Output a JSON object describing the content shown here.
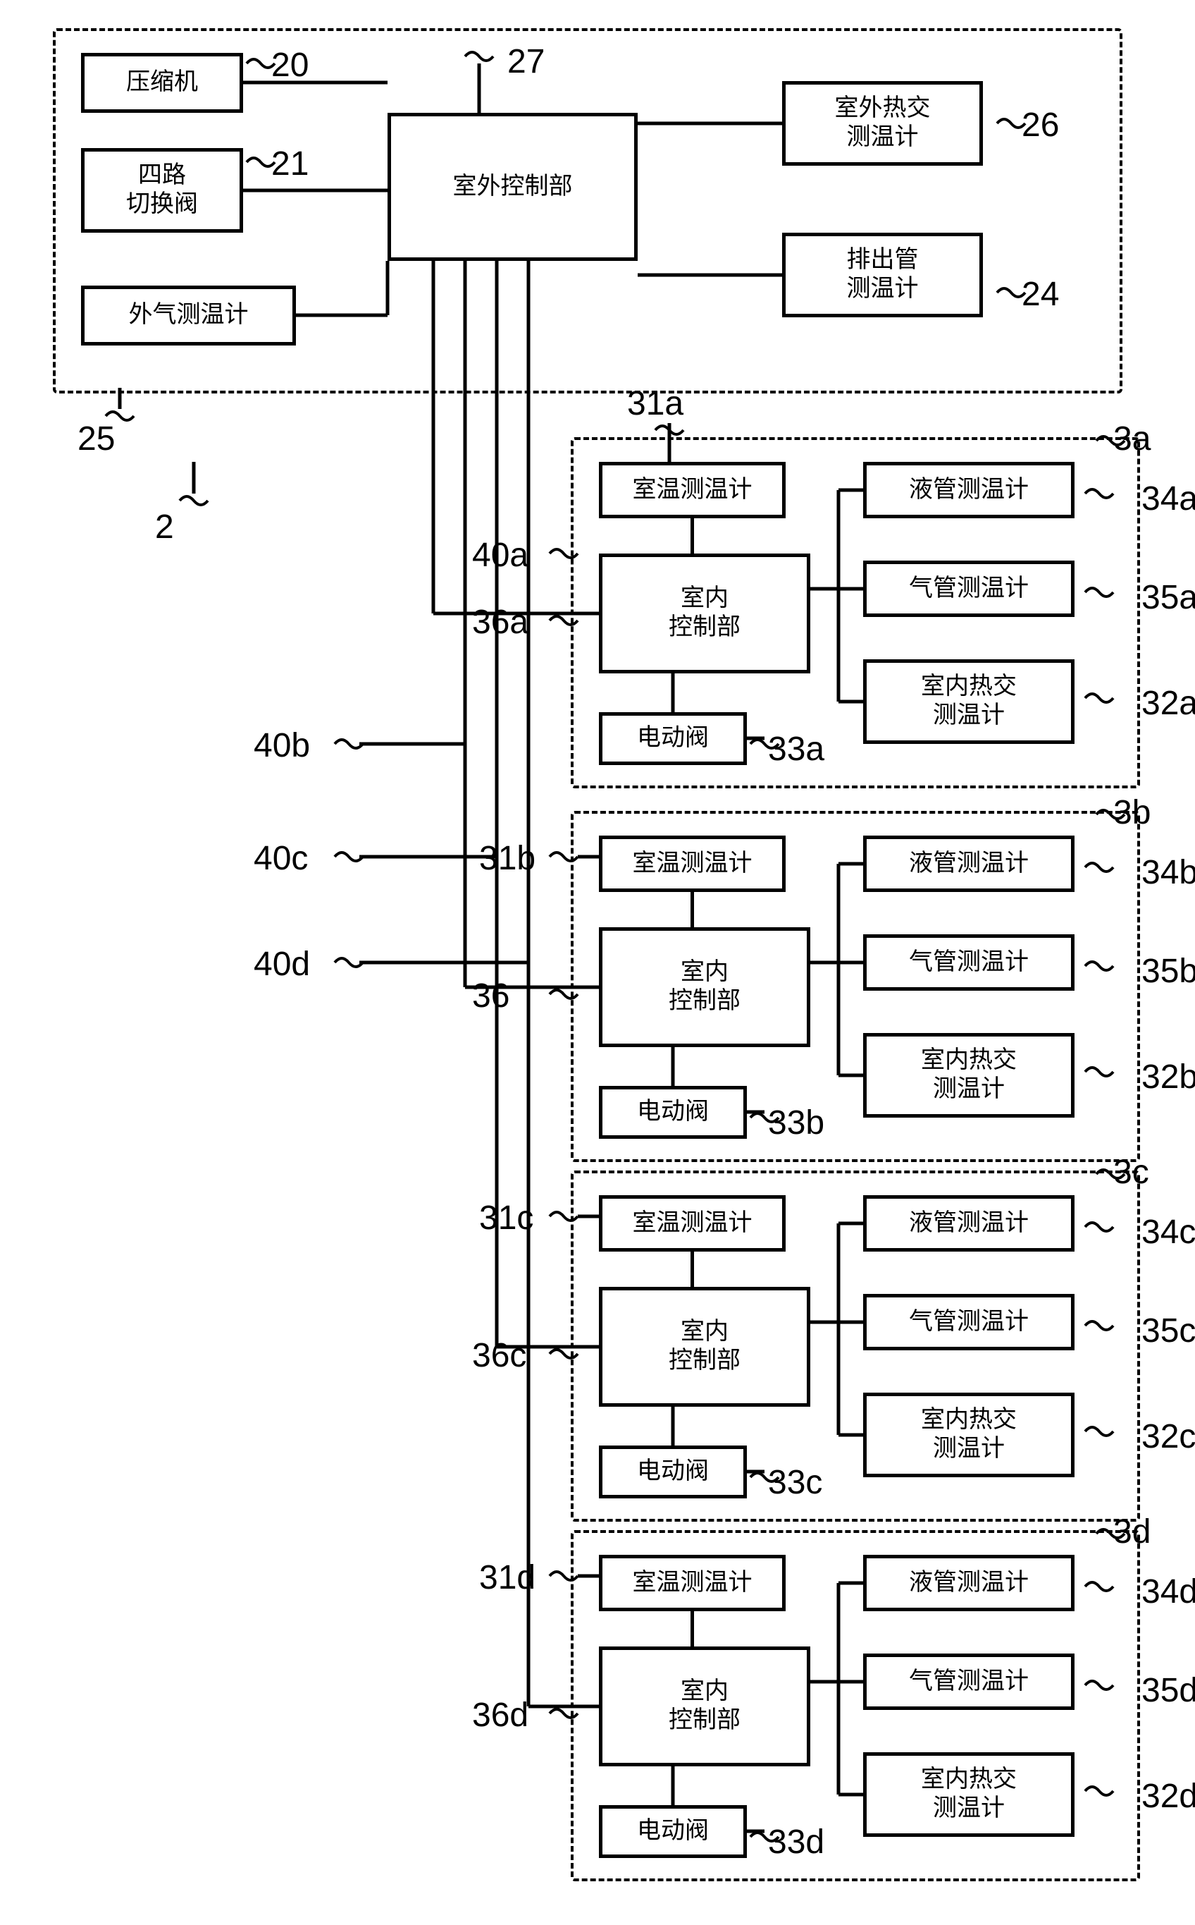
{
  "outdoor": {
    "compressor": "压缩机",
    "four_way": "四路\n切换阀",
    "outdoor_ctrl": "室外控制部",
    "outdoor_hx": "室外热交\n测温计",
    "discharge": "排出管\n测温计",
    "outside_air": "外气测温计",
    "labels": {
      "l20": "20",
      "l21": "21",
      "l27": "27",
      "l26": "26",
      "l24": "24",
      "l25": "25",
      "l2": "2"
    }
  },
  "indoor": {
    "room_temp": "室温测温计",
    "indoor_ctrl": "室内\n控制部",
    "e_valve": "电动阀",
    "liquid": "液管测温计",
    "gas": "气管测温计",
    "indoor_hx": "室内热交\n测温计"
  },
  "units": [
    {
      "suffix": "a",
      "has_36_suffix": true,
      "l40": "40a",
      "l31": "31a",
      "l36": "36a",
      "l33": "33a",
      "l34": "34a",
      "l35": "35a",
      "l32": "32a",
      "l3": "3a"
    },
    {
      "suffix": "b",
      "has_36_suffix": false,
      "l40": "40b",
      "l31": "31b",
      "l36": "36",
      "l33": "33b",
      "l34": "34b",
      "l35": "35b",
      "l32": "32b",
      "l3": "3b"
    },
    {
      "suffix": "c",
      "has_36_suffix": true,
      "l40": "40c",
      "l31": "31c",
      "l36": "36c",
      "l33": "33c",
      "l34": "34c",
      "l35": "35c",
      "l32": "32c",
      "l3": "3c"
    },
    {
      "suffix": "d",
      "has_36_suffix": true,
      "l40": "40d",
      "l31": "31d",
      "l36": "36d",
      "l33": "33d",
      "l34": "34d",
      "l35": "35d",
      "l32": "32d",
      "l3": "3d"
    }
  ],
  "bus_labels": {
    "l40b": "40b",
    "l40c": "40c",
    "l40d": "40d"
  }
}
